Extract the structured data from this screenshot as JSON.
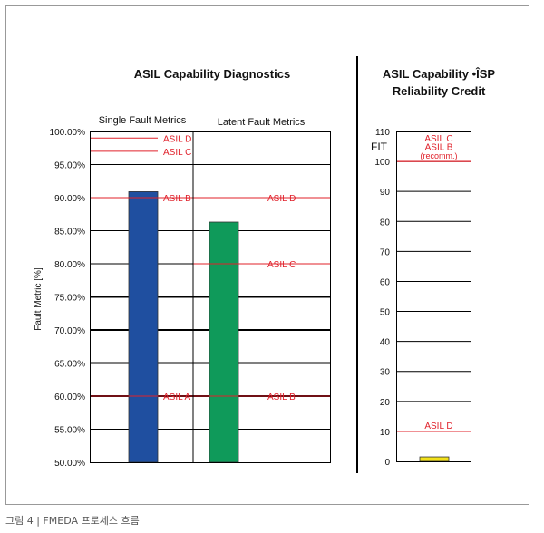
{
  "caption": "그림 4 | FMEDA 프로세스 흐름",
  "chart_data": [
    {
      "type": "bar",
      "title": "ASIL Capability Diagnostics",
      "ylabel": "Fault Metric [%]",
      "ylim": [
        50,
        100
      ],
      "yticks": [
        "100.00%",
        "95.00%",
        "90.00%",
        "85.00%",
        "80.00%",
        "75.00%",
        "70.00%",
        "65.00%",
        "60.00%",
        "55.00%",
        "50.00%"
      ],
      "ytick_values": [
        100,
        95,
        90,
        85,
        80,
        75,
        70,
        65,
        60,
        55,
        50
      ],
      "grid": true,
      "categories": [
        "Single Fault Metrics",
        "Latent Fault Metrics"
      ],
      "values": [
        90.9,
        86.3
      ],
      "bar_colors": [
        "#1f4fa0",
        "#0f9a5a"
      ],
      "thresholds": [
        {
          "category": 0,
          "label": "ASIL D",
          "value": 99
        },
        {
          "category": 0,
          "label": "ASIL C",
          "value": 97
        },
        {
          "category": 0,
          "label": "ASIL B",
          "value": 90
        },
        {
          "category": 0,
          "label": "ASIL A",
          "value": 60
        },
        {
          "category": 1,
          "label": "ASIL D",
          "value": 90
        },
        {
          "category": 1,
          "label": "ASIL C",
          "value": 80
        },
        {
          "category": 1,
          "label": "ASIL B",
          "value": 60
        }
      ],
      "threshold_color": "#e0202a"
    },
    {
      "type": "bar",
      "title_line1": "ASIL Capability •ÎSP",
      "title_line2": "Reliability Credit",
      "ylabel": "FIT",
      "ylim": [
        0,
        110
      ],
      "yticks": [
        "110",
        "100",
        "90",
        "80",
        "70",
        "60",
        "50",
        "40",
        "30",
        "20",
        "10",
        "0"
      ],
      "ytick_values": [
        110,
        100,
        90,
        80,
        70,
        60,
        50,
        40,
        30,
        20,
        10,
        0
      ],
      "grid": true,
      "values": [
        1.5
      ],
      "bar_color": "#f2e11a",
      "thresholds": [
        {
          "label_lines": [
            "ASIL C",
            "ASIL B",
            "(recomm.)"
          ],
          "value": 100
        },
        {
          "label_lines": [
            "ASIL D"
          ],
          "value": 10
        }
      ],
      "threshold_color": "#e0202a"
    }
  ]
}
